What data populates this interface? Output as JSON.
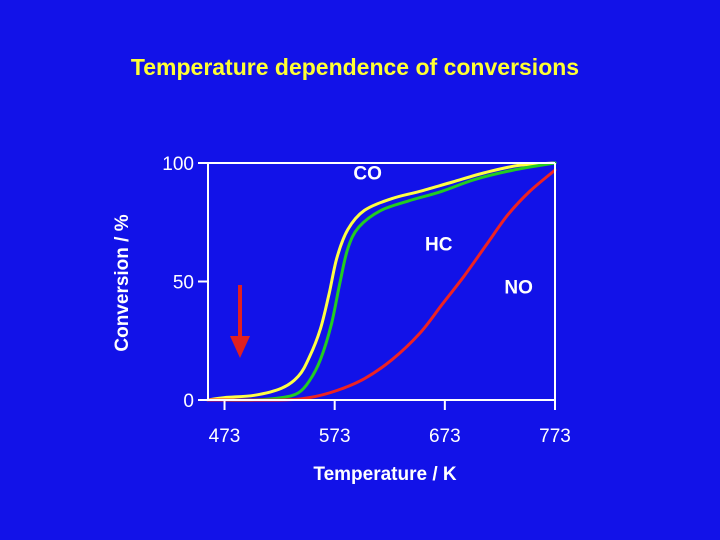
{
  "title": "Temperature dependence of conversions",
  "chart_data": {
    "type": "line",
    "xlabel": "Temperature / K",
    "ylabel": "Conversion / %",
    "xlim": [
      458,
      773
    ],
    "ylim": [
      0,
      100
    ],
    "x_ticks": [
      473,
      573,
      673,
      773
    ],
    "y_ticks": [
      0,
      50,
      100
    ],
    "grid": false,
    "legend": "none",
    "series": [
      {
        "name": "CO",
        "color": "#ffff44",
        "points": [
          [
            458,
            0
          ],
          [
            473,
            1
          ],
          [
            500,
            2
          ],
          [
            525,
            5
          ],
          [
            540,
            10
          ],
          [
            550,
            18
          ],
          [
            560,
            30
          ],
          [
            568,
            45
          ],
          [
            575,
            60
          ],
          [
            585,
            72
          ],
          [
            600,
            80
          ],
          [
            625,
            85
          ],
          [
            650,
            88
          ],
          [
            680,
            92
          ],
          [
            710,
            96
          ],
          [
            740,
            99
          ],
          [
            773,
            100
          ]
        ]
      },
      {
        "name": "HC",
        "color": "#22cc22",
        "points": [
          [
            458,
            0
          ],
          [
            473,
            0
          ],
          [
            500,
            0
          ],
          [
            525,
            1
          ],
          [
            540,
            3
          ],
          [
            550,
            8
          ],
          [
            560,
            17
          ],
          [
            570,
            32
          ],
          [
            578,
            50
          ],
          [
            585,
            64
          ],
          [
            595,
            73
          ],
          [
            615,
            80
          ],
          [
            640,
            84
          ],
          [
            670,
            88
          ],
          [
            700,
            93
          ],
          [
            735,
            97
          ],
          [
            773,
            100
          ]
        ]
      },
      {
        "name": "NO",
        "color": "#ee2222",
        "points": [
          [
            458,
            0
          ],
          [
            473,
            0
          ],
          [
            525,
            0
          ],
          [
            550,
            1
          ],
          [
            575,
            4
          ],
          [
            600,
            9
          ],
          [
            625,
            17
          ],
          [
            650,
            28
          ],
          [
            670,
            40
          ],
          [
            690,
            52
          ],
          [
            710,
            65
          ],
          [
            730,
            78
          ],
          [
            750,
            88
          ],
          [
            773,
            97
          ]
        ]
      }
    ]
  }
}
